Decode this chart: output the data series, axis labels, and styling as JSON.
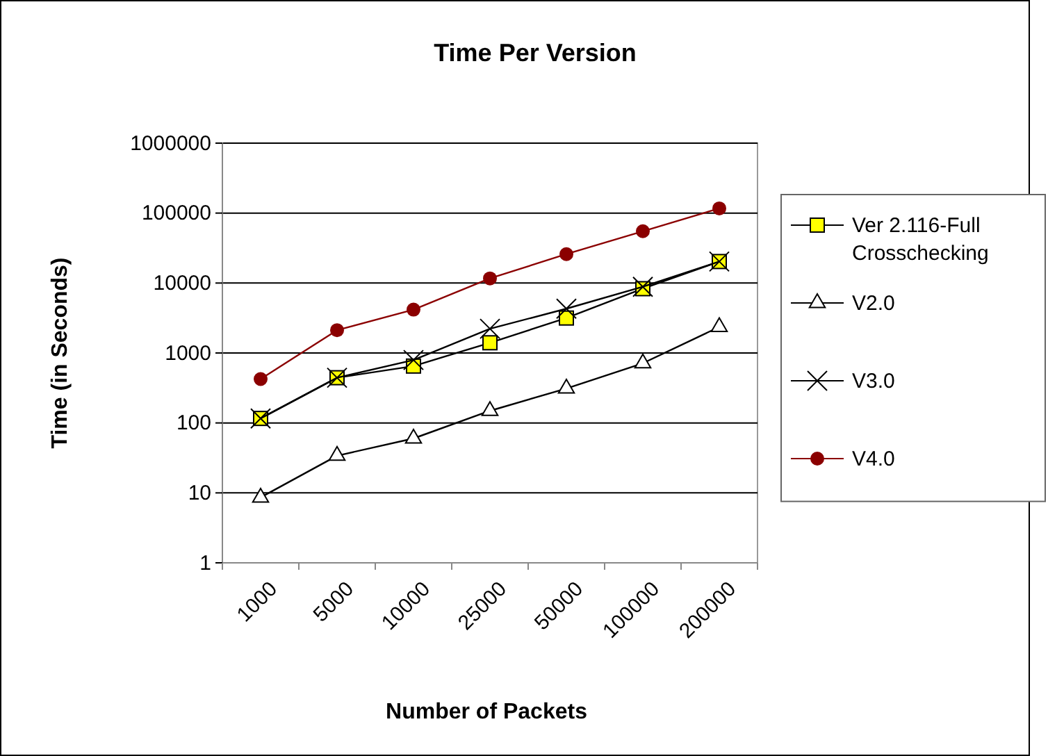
{
  "chart_data": {
    "type": "line",
    "title": "Time Per Version",
    "xlabel": "Number of Packets",
    "ylabel": "Time (in Seconds)",
    "categories": [
      "1000",
      "5000",
      "10000",
      "25000",
      "50000",
      "100000",
      "200000"
    ],
    "series": [
      {
        "name": "Ver 2.116-Full Crosschecking",
        "color": "#000000",
        "marker": "square",
        "values": [
          116,
          443,
          650,
          1400,
          3160,
          8300,
          20300
        ]
      },
      {
        "name": "V2.0",
        "color": "#000000",
        "marker": "triangle",
        "values": [
          8.6,
          34,
          60,
          149,
          311,
          713,
          2360
        ]
      },
      {
        "name": "V3.0",
        "color": "#000000",
        "marker": "cross",
        "values": [
          116,
          443,
          794,
          2220,
          4300,
          8850,
          20300
        ]
      },
      {
        "name": "V4.0",
        "color": "#8b0000",
        "marker": "circle",
        "values": [
          424,
          2120,
          4170,
          11650,
          25900,
          55000,
          116700
        ]
      }
    ],
    "log": true,
    "ylim": [
      1,
      1000000
    ],
    "yticks": [
      1,
      10,
      100,
      1000,
      10000,
      100000,
      1000000
    ],
    "grid": "y",
    "legend": "right"
  }
}
